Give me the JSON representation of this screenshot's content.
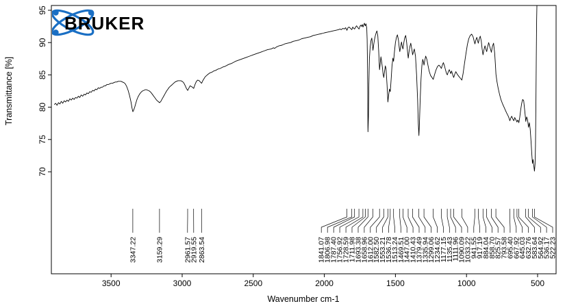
{
  "logo": {
    "text": "BRUKER",
    "color": "#1a6fc4",
    "text_color": "#000000"
  },
  "chart_data": {
    "type": "line",
    "xlabel": "Wavenumber cm-1",
    "ylabel": "Transmittance [%]",
    "line_color": "#000000",
    "grid": false,
    "x_axis_reversed": true,
    "x_domain": [
      370,
      3920
    ],
    "x_ticks": [
      3500,
      3000,
      2500,
      2000,
      1500,
      1000,
      500
    ],
    "y_ticks": [
      70,
      75,
      80,
      85,
      90,
      95
    ],
    "ylim": [
      70,
      95
    ],
    "peak_labels": [
      "3347.22",
      "3159.29",
      "2961.57",
      "2919.55",
      "2863.54",
      "1841.07",
      "1806.98",
      "1787.40",
      "1756.92",
      "1728.59",
      "1711.98",
      "1693.38",
      "1658.96",
      "1612.00",
      "1582.50",
      "1553.21",
      "1536.78",
      "1513.24",
      "1469.51",
      "1447.00",
      "1410.43",
      "1379.49",
      "1335.94",
      "1299.06",
      "1234.62",
      "1177.15",
      "1135.43",
      "1111.96",
      "1090.09",
      "1033.22",
      "941.55",
      "917.19",
      "884.04",
      "858.70",
      "825.57",
      "793.58",
      "695.40",
      "667.92",
      "645.03",
      "632.76",
      "583.64",
      "564.92",
      "536.17",
      "522.23"
    ],
    "spectrum": [
      [
        3900,
        80.4
      ],
      [
        3890,
        80.6
      ],
      [
        3880,
        80.3
      ],
      [
        3870,
        80.7
      ],
      [
        3860,
        80.5
      ],
      [
        3850,
        80.9
      ],
      [
        3840,
        80.6
      ],
      [
        3830,
        81.0
      ],
      [
        3820,
        80.8
      ],
      [
        3810,
        81.1
      ],
      [
        3800,
        80.9
      ],
      [
        3790,
        81.3
      ],
      [
        3780,
        81.1
      ],
      [
        3770,
        81.4
      ],
      [
        3760,
        81.2
      ],
      [
        3750,
        81.5
      ],
      [
        3740,
        81.4
      ],
      [
        3730,
        81.7
      ],
      [
        3720,
        81.5
      ],
      [
        3710,
        81.9
      ],
      [
        3700,
        81.7
      ],
      [
        3690,
        82.0
      ],
      [
        3680,
        81.9
      ],
      [
        3670,
        82.2
      ],
      [
        3660,
        82.1
      ],
      [
        3650,
        82.4
      ],
      [
        3640,
        82.3
      ],
      [
        3630,
        82.6
      ],
      [
        3620,
        82.5
      ],
      [
        3610,
        82.8
      ],
      [
        3600,
        82.7
      ],
      [
        3590,
        83.0
      ],
      [
        3580,
        82.9
      ],
      [
        3570,
        83.1
      ],
      [
        3560,
        83.1
      ],
      [
        3550,
        83.3
      ],
      [
        3540,
        83.3
      ],
      [
        3530,
        83.5
      ],
      [
        3520,
        83.5
      ],
      [
        3510,
        83.6
      ],
      [
        3500,
        83.7
      ],
      [
        3490,
        83.7
      ],
      [
        3480,
        83.8
      ],
      [
        3470,
        83.9
      ],
      [
        3460,
        83.9
      ],
      [
        3450,
        84.0
      ],
      [
        3440,
        84.0
      ],
      [
        3430,
        84.0
      ],
      [
        3420,
        83.9
      ],
      [
        3410,
        83.8
      ],
      [
        3400,
        83.6
      ],
      [
        3390,
        83.2
      ],
      [
        3380,
        82.6
      ],
      [
        3370,
        81.8
      ],
      [
        3360,
        80.8
      ],
      [
        3352,
        79.8
      ],
      [
        3347,
        79.3
      ],
      [
        3342,
        79.5
      ],
      [
        3334,
        80.0
      ],
      [
        3326,
        80.6
      ],
      [
        3318,
        81.2
      ],
      [
        3310,
        81.6
      ],
      [
        3300,
        82.0
      ],
      [
        3290,
        82.3
      ],
      [
        3280,
        82.5
      ],
      [
        3270,
        82.6
      ],
      [
        3260,
        82.7
      ],
      [
        3250,
        82.7
      ],
      [
        3240,
        82.6
      ],
      [
        3230,
        82.5
      ],
      [
        3220,
        82.3
      ],
      [
        3210,
        82.0
      ],
      [
        3200,
        81.7
      ],
      [
        3190,
        81.4
      ],
      [
        3180,
        81.1
      ],
      [
        3170,
        80.9
      ],
      [
        3159,
        80.7
      ],
      [
        3150,
        80.9
      ],
      [
        3140,
        81.3
      ],
      [
        3130,
        81.7
      ],
      [
        3120,
        82.1
      ],
      [
        3110,
        82.5
      ],
      [
        3100,
        82.8
      ],
      [
        3090,
        83.1
      ],
      [
        3080,
        83.3
      ],
      [
        3070,
        83.5
      ],
      [
        3060,
        83.7
      ],
      [
        3050,
        83.9
      ],
      [
        3040,
        84.0
      ],
      [
        3030,
        84.1
      ],
      [
        3020,
        84.1
      ],
      [
        3010,
        84.1
      ],
      [
        3000,
        84.0
      ],
      [
        2990,
        83.8
      ],
      [
        2980,
        83.4
      ],
      [
        2970,
        82.9
      ],
      [
        2961,
        82.6
      ],
      [
        2952,
        83.0
      ],
      [
        2944,
        83.3
      ],
      [
        2936,
        83.2
      ],
      [
        2928,
        83.1
      ],
      [
        2919,
        82.9
      ],
      [
        2910,
        83.5
      ],
      [
        2900,
        84.0
      ],
      [
        2890,
        84.2
      ],
      [
        2880,
        84.1
      ],
      [
        2872,
        83.9
      ],
      [
        2863,
        83.7
      ],
      [
        2855,
        84.1
      ],
      [
        2847,
        84.4
      ],
      [
        2838,
        84.7
      ],
      [
        2828,
        84.9
      ],
      [
        2818,
        85.1
      ],
      [
        2806,
        85.3
      ],
      [
        2792,
        85.4
      ],
      [
        2778,
        85.6
      ],
      [
        2764,
        85.7
      ],
      [
        2748,
        85.9
      ],
      [
        2732,
        86.0
      ],
      [
        2716,
        86.2
      ],
      [
        2700,
        86.3
      ],
      [
        2675,
        86.6
      ],
      [
        2650,
        86.8
      ],
      [
        2625,
        87.1
      ],
      [
        2600,
        87.3
      ],
      [
        2575,
        87.5
      ],
      [
        2550,
        87.7
      ],
      [
        2525,
        87.9
      ],
      [
        2500,
        88.1
      ],
      [
        2475,
        88.3
      ],
      [
        2450,
        88.5
      ],
      [
        2425,
        88.7
      ],
      [
        2400,
        88.9
      ],
      [
        2375,
        89.0
      ],
      [
        2358,
        89.2
      ],
      [
        2349,
        89.1
      ],
      [
        2338,
        89.3
      ],
      [
        2318,
        89.5
      ],
      [
        2298,
        89.6
      ],
      [
        2278,
        89.8
      ],
      [
        2258,
        89.9
      ],
      [
        2238,
        90.0
      ],
      [
        2218,
        90.2
      ],
      [
        2198,
        90.3
      ],
      [
        2178,
        90.4
      ],
      [
        2158,
        90.6
      ],
      [
        2138,
        90.7
      ],
      [
        2118,
        90.8
      ],
      [
        2098,
        90.9
      ],
      [
        2078,
        91.1
      ],
      [
        2058,
        91.2
      ],
      [
        2038,
        91.3
      ],
      [
        2018,
        91.4
      ],
      [
        2000,
        91.5
      ],
      [
        1980,
        91.6
      ],
      [
        1960,
        91.7
      ],
      [
        1940,
        91.8
      ],
      [
        1920,
        91.9
      ],
      [
        1900,
        92.0
      ],
      [
        1890,
        92.1
      ],
      [
        1880,
        92.0
      ],
      [
        1870,
        92.2
      ],
      [
        1860,
        92.1
      ],
      [
        1850,
        92.3
      ],
      [
        1841,
        91.9
      ],
      [
        1834,
        92.3
      ],
      [
        1826,
        92.4
      ],
      [
        1816,
        92.2
      ],
      [
        1807,
        92.0
      ],
      [
        1800,
        92.4
      ],
      [
        1794,
        92.2
      ],
      [
        1787,
        92.1
      ],
      [
        1780,
        92.4
      ],
      [
        1773,
        92.6
      ],
      [
        1764,
        92.3
      ],
      [
        1756,
        92.1
      ],
      [
        1750,
        92.5
      ],
      [
        1744,
        92.7
      ],
      [
        1738,
        92.5
      ],
      [
        1733,
        92.8
      ],
      [
        1728,
        92.4
      ],
      [
        1723,
        92.7
      ],
      [
        1718,
        93.0
      ],
      [
        1712,
        92.6
      ],
      [
        1707,
        92.9
      ],
      [
        1702,
        92.3
      ],
      [
        1699,
        90.5
      ],
      [
        1696,
        86.0
      ],
      [
        1693,
        76.2
      ],
      [
        1690,
        78.5
      ],
      [
        1687,
        83.5
      ],
      [
        1683,
        87.5
      ],
      [
        1678,
        89.3
      ],
      [
        1672,
        90.3
      ],
      [
        1666,
        90.7
      ],
      [
        1662,
        89.8
      ],
      [
        1658,
        88.8
      ],
      [
        1653,
        89.6
      ],
      [
        1648,
        90.4
      ],
      [
        1642,
        91.0
      ],
      [
        1636,
        91.5
      ],
      [
        1630,
        91.8
      ],
      [
        1624,
        91.0
      ],
      [
        1618,
        88.8
      ],
      [
        1612,
        85.8
      ],
      [
        1607,
        86.8
      ],
      [
        1602,
        87.8
      ],
      [
        1597,
        87.0
      ],
      [
        1592,
        86.2
      ],
      [
        1587,
        85.2
      ],
      [
        1582,
        84.6
      ],
      [
        1576,
        85.6
      ],
      [
        1571,
        86.4
      ],
      [
        1566,
        85.9
      ],
      [
        1559,
        83.4
      ],
      [
        1553,
        80.8
      ],
      [
        1548,
        81.8
      ],
      [
        1542,
        82.8
      ],
      [
        1536,
        82.4
      ],
      [
        1530,
        84.4
      ],
      [
        1524,
        86.4
      ],
      [
        1518,
        87.6
      ],
      [
        1513,
        87.1
      ],
      [
        1507,
        88.6
      ],
      [
        1500,
        90.0
      ],
      [
        1493,
        90.8
      ],
      [
        1486,
        91.2
      ],
      [
        1479,
        90.4
      ],
      [
        1473,
        89.2
      ],
      [
        1469,
        88.6
      ],
      [
        1463,
        89.4
      ],
      [
        1457,
        90.1
      ],
      [
        1452,
        89.4
      ],
      [
        1447,
        89.0
      ],
      [
        1441,
        90.0
      ],
      [
        1435,
        90.7
      ],
      [
        1428,
        91.1
      ],
      [
        1421,
        90.0
      ],
      [
        1415,
        88.6
      ],
      [
        1410,
        87.6
      ],
      [
        1404,
        88.6
      ],
      [
        1398,
        89.4
      ],
      [
        1392,
        89.9
      ],
      [
        1385,
        89.0
      ],
      [
        1379,
        88.1
      ],
      [
        1373,
        88.6
      ],
      [
        1367,
        89.0
      ],
      [
        1359,
        87.9
      ],
      [
        1351,
        85.0
      ],
      [
        1344,
        81.2
      ],
      [
        1339,
        77.5
      ],
      [
        1335,
        75.6
      ],
      [
        1331,
        77.6
      ],
      [
        1326,
        81.0
      ],
      [
        1320,
        84.4
      ],
      [
        1314,
        86.4
      ],
      [
        1308,
        87.4
      ],
      [
        1303,
        87.0
      ],
      [
        1299,
        86.5
      ],
      [
        1293,
        87.3
      ],
      [
        1287,
        87.9
      ],
      [
        1279,
        87.4
      ],
      [
        1271,
        86.5
      ],
      [
        1263,
        85.6
      ],
      [
        1253,
        84.9
      ],
      [
        1243,
        84.6
      ],
      [
        1234,
        84.3
      ],
      [
        1224,
        85.1
      ],
      [
        1214,
        85.8
      ],
      [
        1204,
        86.3
      ],
      [
        1194,
        86.5
      ],
      [
        1185,
        86.3
      ],
      [
        1177,
        86.0
      ],
      [
        1170,
        86.5
      ],
      [
        1163,
        86.9
      ],
      [
        1155,
        86.4
      ],
      [
        1147,
        85.7
      ],
      [
        1140,
        85.2
      ],
      [
        1135,
        85.0
      ],
      [
        1128,
        85.5
      ],
      [
        1121,
        85.8
      ],
      [
        1116,
        85.5
      ],
      [
        1111,
        85.2
      ],
      [
        1105,
        85.6
      ],
      [
        1097,
        85.0
      ],
      [
        1090,
        84.6
      ],
      [
        1083,
        85.1
      ],
      [
        1075,
        85.5
      ],
      [
        1065,
        85.1
      ],
      [
        1055,
        84.8
      ],
      [
        1044,
        84.5
      ],
      [
        1033,
        84.2
      ],
      [
        1024,
        85.2
      ],
      [
        1014,
        86.8
      ],
      [
        1004,
        88.3
      ],
      [
        994,
        89.7
      ],
      [
        984,
        90.6
      ],
      [
        974,
        91.1
      ],
      [
        964,
        91.3
      ],
      [
        954,
        90.9
      ],
      [
        947,
        90.3
      ],
      [
        941,
        89.8
      ],
      [
        934,
        90.4
      ],
      [
        928,
        90.8
      ],
      [
        922,
        90.3
      ],
      [
        917,
        89.9
      ],
      [
        910,
        90.6
      ],
      [
        903,
        91.0
      ],
      [
        896,
        90.2
      ],
      [
        890,
        89.0
      ],
      [
        884,
        88.1
      ],
      [
        877,
        88.9
      ],
      [
        870,
        89.5
      ],
      [
        864,
        89.0
      ],
      [
        858,
        88.6
      ],
      [
        851,
        89.4
      ],
      [
        844,
        90.0
      ],
      [
        836,
        89.3
      ],
      [
        830,
        88.9
      ],
      [
        825,
        88.5
      ],
      [
        818,
        89.4
      ],
      [
        810,
        89.9
      ],
      [
        802,
        88.4
      ],
      [
        797,
        86.6
      ],
      [
        793,
        85.1
      ],
      [
        786,
        84.0
      ],
      [
        778,
        83.0
      ],
      [
        768,
        82.0
      ],
      [
        758,
        81.2
      ],
      [
        748,
        80.6
      ],
      [
        738,
        80.1
      ],
      [
        728,
        79.6
      ],
      [
        718,
        79.1
      ],
      [
        708,
        78.7
      ],
      [
        701,
        78.3
      ],
      [
        695,
        77.9
      ],
      [
        689,
        78.3
      ],
      [
        682,
        78.6
      ],
      [
        675,
        78.2
      ],
      [
        667,
        77.9
      ],
      [
        661,
        78.4
      ],
      [
        654,
        78.1
      ],
      [
        645,
        77.7
      ],
      [
        640,
        78.0
      ],
      [
        636,
        77.9
      ],
      [
        632,
        77.6
      ],
      [
        626,
        78.4
      ],
      [
        619,
        79.6
      ],
      [
        612,
        80.6
      ],
      [
        605,
        81.2
      ],
      [
        598,
        81.0
      ],
      [
        591,
        79.6
      ],
      [
        583,
        77.8
      ],
      [
        577,
        78.5
      ],
      [
        571,
        78.1
      ],
      [
        564,
        76.9
      ],
      [
        558,
        77.6
      ],
      [
        552,
        76.6
      ],
      [
        546,
        74.6
      ],
      [
        541,
        72.8
      ],
      [
        536,
        71.3
      ],
      [
        532,
        71.9
      ],
      [
        527,
        71.0
      ],
      [
        522,
        70.1
      ],
      [
        518,
        71.2
      ],
      [
        515,
        74.0
      ],
      [
        512,
        80.0
      ],
      [
        509,
        88.0
      ],
      [
        507,
        93.5
      ],
      [
        505,
        95.7
      ]
    ]
  }
}
